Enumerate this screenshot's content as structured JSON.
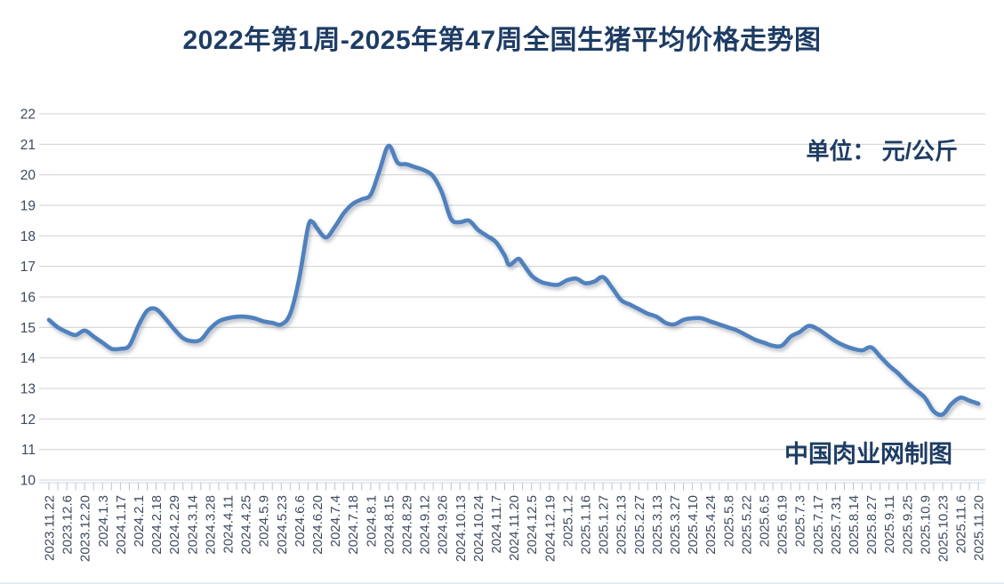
{
  "page": {
    "title": "2022年第1周-2025年第47周全国生猪平均价格走势图",
    "unit_label": "单位： 元/公斤",
    "credit_label": "中国肉业网制图"
  },
  "chart_data": {
    "type": "line",
    "title": "2022年第1周-2025年第47周全国生猪平均价格走势图",
    "unit": "元/公斤",
    "xlabel": "",
    "ylabel": "",
    "ylim": [
      10,
      22
    ],
    "ytick_step": 1,
    "grid": true,
    "legend": false,
    "line_color": "#4f81bd",
    "grid_color": "#d9d9d9",
    "tick_color": "#b7c3d5",
    "axis_text_color": "#3e4a5e",
    "title_color": "#1e3c64",
    "x_labels": [
      "2023.11.22",
      "2023.12.6",
      "2023.12.20",
      "2024.1.3",
      "2024.1.17",
      "2024.2.1",
      "2024.2.18",
      "2024.2.29",
      "2024.3.14",
      "2024.3.28",
      "2024.4.11",
      "2024.4.25",
      "2024.5.9",
      "2024.5.23",
      "2024.6.6",
      "2024.6.20",
      "2024.7.4",
      "2024.7.18",
      "2024.8.1",
      "2024.8.15",
      "2024.8.29",
      "2024.9.12",
      "2024.9.26",
      "2024.10.13",
      "2024.10.24",
      "2024.11.7",
      "2024.11.20",
      "2024.12.5",
      "2024.12.19",
      "2025.1.2",
      "2025.1.16",
      "2025.1.27",
      "2025.2.13",
      "2025.2.27",
      "2025.3.13",
      "2025.3.27",
      "2025.4.10",
      "2025.4.24",
      "2025.5.8",
      "2025.5.22",
      "2025.6.5",
      "2025.6.19",
      "2025.7.3",
      "2025.7.17",
      "2025.7.31",
      "2025.8.14",
      "2025.8.27",
      "2025.9.11",
      "2025.9.25",
      "2025.10.9",
      "2025.10.23",
      "2025.11.6",
      "2025.11.20"
    ],
    "points": [
      [
        0,
        15.25
      ],
      [
        0.5,
        15.0
      ],
      [
        1,
        14.85
      ],
      [
        1.5,
        14.75
      ],
      [
        2,
        14.9
      ],
      [
        2.5,
        14.7
      ],
      [
        3,
        14.5
      ],
      [
        3.5,
        14.3
      ],
      [
        4,
        14.3
      ],
      [
        4.5,
        14.4
      ],
      [
        5,
        15.05
      ],
      [
        5.5,
        15.55
      ],
      [
        6,
        15.6
      ],
      [
        6.5,
        15.3
      ],
      [
        7,
        14.95
      ],
      [
        7.5,
        14.65
      ],
      [
        8,
        14.55
      ],
      [
        8.5,
        14.6
      ],
      [
        9,
        14.95
      ],
      [
        9.5,
        15.2
      ],
      [
        10,
        15.3
      ],
      [
        10.5,
        15.35
      ],
      [
        11,
        15.35
      ],
      [
        11.5,
        15.3
      ],
      [
        12,
        15.2
      ],
      [
        12.5,
        15.15
      ],
      [
        13,
        15.1
      ],
      [
        13.5,
        15.45
      ],
      [
        14,
        16.6
      ],
      [
        14.5,
        18.3
      ],
      [
        14.75,
        18.45
      ],
      [
        15,
        18.25
      ],
      [
        15.5,
        17.95
      ],
      [
        16,
        18.3
      ],
      [
        16.5,
        18.75
      ],
      [
        17,
        19.05
      ],
      [
        17.5,
        19.2
      ],
      [
        18,
        19.35
      ],
      [
        18.5,
        20.15
      ],
      [
        19,
        20.95
      ],
      [
        19.5,
        20.4
      ],
      [
        20,
        20.35
      ],
      [
        20.5,
        20.25
      ],
      [
        21,
        20.15
      ],
      [
        21.5,
        19.95
      ],
      [
        22,
        19.4
      ],
      [
        22.5,
        18.55
      ],
      [
        23,
        18.45
      ],
      [
        23.5,
        18.5
      ],
      [
        24,
        18.2
      ],
      [
        24.5,
        18.0
      ],
      [
        25,
        17.8
      ],
      [
        25.5,
        17.35
      ],
      [
        25.75,
        17.05
      ],
      [
        26.25,
        17.25
      ],
      [
        26.5,
        17.1
      ],
      [
        27,
        16.7
      ],
      [
        27.5,
        16.5
      ],
      [
        28,
        16.42
      ],
      [
        28.5,
        16.4
      ],
      [
        29,
        16.55
      ],
      [
        29.5,
        16.6
      ],
      [
        30,
        16.45
      ],
      [
        30.5,
        16.5
      ],
      [
        31,
        16.65
      ],
      [
        31.5,
        16.3
      ],
      [
        32,
        15.9
      ],
      [
        32.5,
        15.75
      ],
      [
        33,
        15.6
      ],
      [
        33.5,
        15.45
      ],
      [
        34,
        15.35
      ],
      [
        34.5,
        15.15
      ],
      [
        35,
        15.1
      ],
      [
        35.5,
        15.25
      ],
      [
        36,
        15.3
      ],
      [
        36.5,
        15.3
      ],
      [
        37,
        15.2
      ],
      [
        37.5,
        15.1
      ],
      [
        38,
        15.0
      ],
      [
        38.5,
        14.9
      ],
      [
        39,
        14.75
      ],
      [
        39.5,
        14.6
      ],
      [
        40,
        14.5
      ],
      [
        40.5,
        14.4
      ],
      [
        41,
        14.4
      ],
      [
        41.5,
        14.7
      ],
      [
        42,
        14.85
      ],
      [
        42.5,
        15.05
      ],
      [
        43,
        14.95
      ],
      [
        43.5,
        14.75
      ],
      [
        44,
        14.55
      ],
      [
        44.5,
        14.4
      ],
      [
        45,
        14.3
      ],
      [
        45.5,
        14.25
      ],
      [
        46,
        14.35
      ],
      [
        46.5,
        14.05
      ],
      [
        47,
        13.75
      ],
      [
        47.5,
        13.5
      ],
      [
        48,
        13.2
      ],
      [
        48.5,
        12.95
      ],
      [
        49,
        12.7
      ],
      [
        49.5,
        12.25
      ],
      [
        50,
        12.15
      ],
      [
        50.5,
        12.5
      ],
      [
        51,
        12.7
      ],
      [
        51.5,
        12.6
      ],
      [
        52,
        12.5
      ]
    ]
  }
}
